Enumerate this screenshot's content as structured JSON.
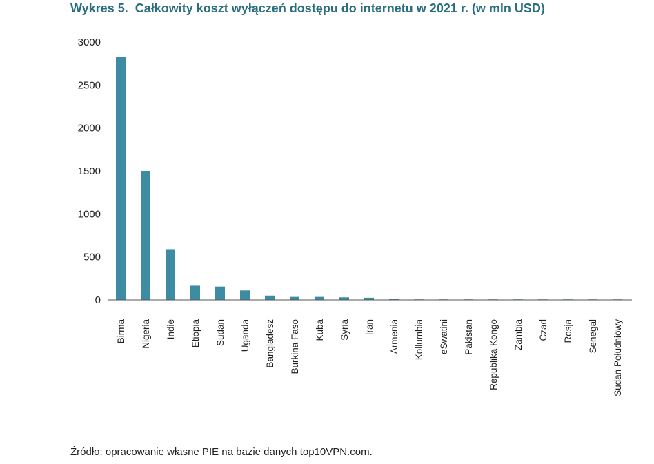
{
  "header": {
    "figure_number": "Wykres 5.",
    "title": "Całkowity koszt wyłączeń dostępu do internetu w 2021 r. (w mln USD)"
  },
  "footer": {
    "source": "Źródło: opracowanie własne PIE na bazie danych top10VPN.com."
  },
  "chart_data": {
    "type": "bar",
    "title": "Całkowity koszt wyłączeń dostępu do internetu w 2021 r. (w mln USD)",
    "categories": [
      "Birma",
      "Nigeria",
      "Indie",
      "Etiopia",
      "Sudan",
      "Uganda",
      "Bangladesz",
      "Burkina Faso",
      "Kuba",
      "Syria",
      "Iran",
      "Armenia",
      "Kollumbia",
      "eSwatini",
      "Pakistan",
      "Republika Kongo",
      "Zambia",
      "Czad",
      "Rosja",
      "Senegal",
      "Sudan Południowy"
    ],
    "values": [
      2830,
      1500,
      590,
      165,
      155,
      110,
      50,
      35,
      35,
      30,
      25,
      8,
      6,
      4,
      3,
      2,
      2,
      1,
      1,
      1,
      1
    ],
    "yticks": [
      0,
      500,
      1000,
      1500,
      2000,
      2500,
      3000
    ],
    "ylim": [
      0,
      3000
    ],
    "grid": false,
    "bar_color": "#3e8ca3",
    "axis_color": "#555555"
  }
}
